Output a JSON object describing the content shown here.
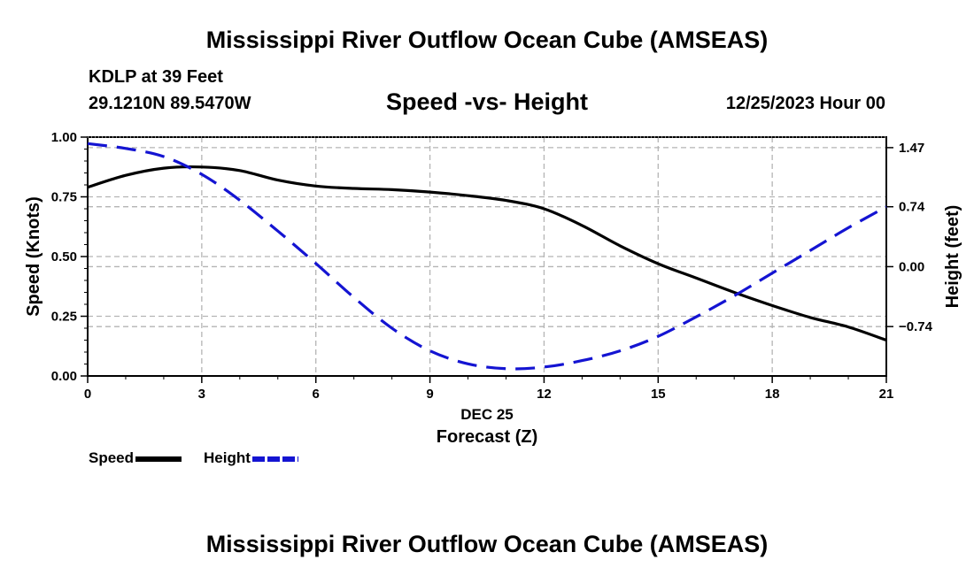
{
  "header": {
    "title": "Mississippi River Outflow Ocean Cube (AMSEAS)",
    "station": "KDLP at 39 Feet",
    "coordinates": "29.1210N  89.5470W",
    "subtitle": "Speed -vs- Height",
    "datetime": "12/25/2023 Hour 00"
  },
  "footer": {
    "title": "Mississippi River Outflow Ocean Cube (AMSEAS)"
  },
  "legend": {
    "speed_label": "Speed",
    "height_label": "Height"
  },
  "colors": {
    "speed": "#000000",
    "height": "#1414d2",
    "grid": "#b4b4b4"
  },
  "chart_data": {
    "type": "line",
    "title": "Speed -vs- Height",
    "xlabel": "Forecast (Z)",
    "xlabel_date": "DEC 25",
    "ylabel": "Speed (Knots)",
    "y2label": "Height (feet)",
    "xlim": [
      0,
      21
    ],
    "ylim": [
      0,
      1
    ],
    "y2lim": [
      -1.35,
      1.6
    ],
    "x_ticks": [
      0,
      3,
      6,
      9,
      12,
      15,
      18,
      21
    ],
    "x_tick_labels": [
      "0",
      "3",
      "6",
      "9",
      "12",
      "15",
      "18",
      "21"
    ],
    "y_ticks": [
      0,
      0.25,
      0.5,
      0.75,
      1.0
    ],
    "y_tick_labels": [
      "0.00",
      "0.25",
      "0.50",
      "0.75",
      "1.00"
    ],
    "y2_ticks": [
      -0.74,
      0,
      0.74,
      1.47
    ],
    "y2_tick_labels": [
      "−0.74",
      "0.00",
      "0.74",
      "1.47"
    ],
    "grid": true,
    "series": [
      {
        "name": "Speed",
        "axis": "left",
        "style": "solid",
        "x": [
          0,
          1,
          2,
          3,
          4,
          5,
          6,
          7,
          8,
          9,
          10,
          11,
          12,
          13,
          14,
          15,
          16,
          17,
          18,
          19,
          20,
          21
        ],
        "values": [
          0.79,
          0.84,
          0.87,
          0.875,
          0.86,
          0.82,
          0.795,
          0.785,
          0.78,
          0.77,
          0.755,
          0.735,
          0.7,
          0.63,
          0.545,
          0.47,
          0.41,
          0.35,
          0.295,
          0.245,
          0.205,
          0.15
        ]
      },
      {
        "name": "Height",
        "axis": "right",
        "style": "dashed",
        "x": [
          0,
          1,
          2,
          3,
          4,
          5,
          6,
          7,
          8,
          9,
          10,
          11,
          12,
          13,
          14,
          15,
          16,
          17,
          18,
          19,
          20,
          21
        ],
        "values": [
          1.52,
          1.46,
          1.36,
          1.14,
          0.82,
          0.44,
          0.04,
          -0.38,
          -0.76,
          -1.04,
          -1.2,
          -1.26,
          -1.24,
          -1.16,
          -1.04,
          -0.86,
          -0.62,
          -0.36,
          -0.08,
          0.2,
          0.48,
          0.74
        ]
      }
    ]
  }
}
